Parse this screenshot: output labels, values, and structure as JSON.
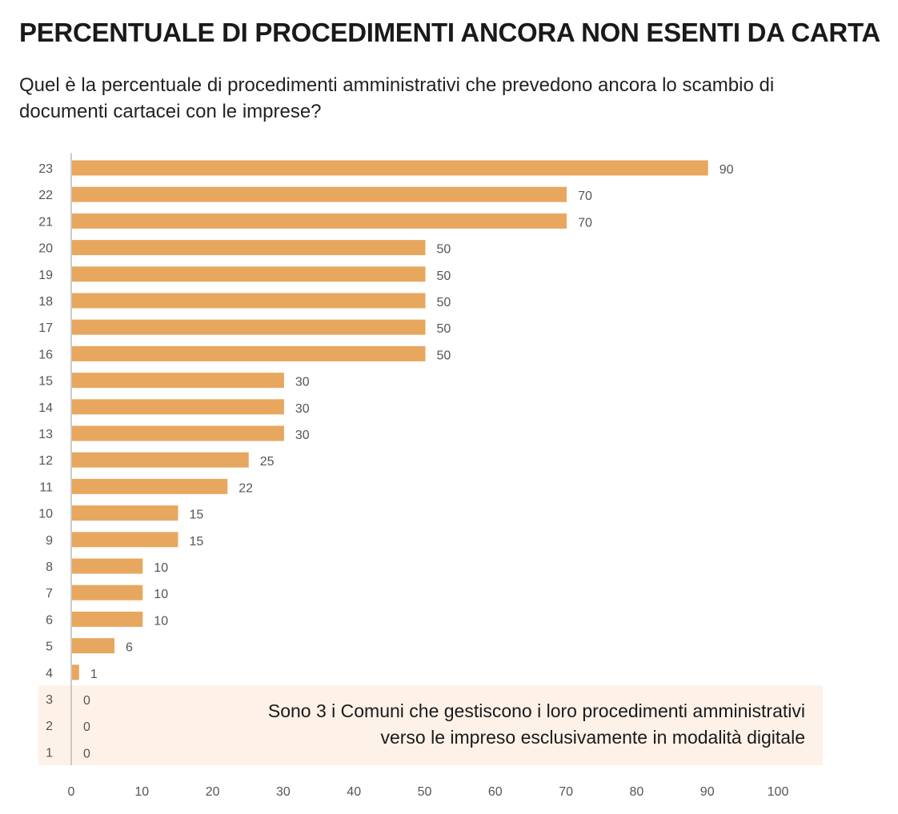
{
  "header": {
    "title": "PERCENTUALE DI PROCEDIMENTI ANCORA NON ESENTI DA CARTA",
    "subtitle": "Quel è la percentuale di procedimenti amministrativi che prevedono ancora lo scambio di documenti cartacei con le imprese?"
  },
  "note": {
    "line1": "Sono 3 i Comuni che gestiscono i loro procedimenti amministrativi",
    "line2": "verso le impreso esclusivamente in modalità digitale"
  },
  "colors": {
    "bar": "#E8A75E",
    "highlight_bg": "#FDF1E8",
    "axis": "#BBBBBB",
    "text": "#555555"
  },
  "chart_data": {
    "type": "bar",
    "orientation": "horizontal",
    "title": "PERCENTUALE DI PROCEDIMENTI ANCORA NON ESENTI DA CARTA",
    "subtitle": "Quel è la percentuale di procedimenti amministrativi che prevedono ancora lo scambio di documenti cartacei con le imprese?",
    "xlabel": "",
    "ylabel": "",
    "categories": [
      "23",
      "22",
      "21",
      "20",
      "19",
      "18",
      "17",
      "16",
      "15",
      "14",
      "13",
      "12",
      "11",
      "10",
      "9",
      "8",
      "7",
      "6",
      "5",
      "4",
      "3",
      "2",
      "1"
    ],
    "values": [
      90,
      70,
      70,
      50,
      50,
      50,
      50,
      50,
      30,
      30,
      30,
      25,
      22,
      15,
      15,
      10,
      10,
      10,
      6,
      1,
      0,
      0,
      0
    ],
    "xlim": [
      0,
      100
    ],
    "xticks": [
      0,
      10,
      20,
      30,
      40,
      50,
      60,
      70,
      80,
      90,
      100
    ],
    "highlighted_categories": [
      "3",
      "2",
      "1"
    ],
    "data_labels": true,
    "grid": false,
    "legend": "none"
  }
}
